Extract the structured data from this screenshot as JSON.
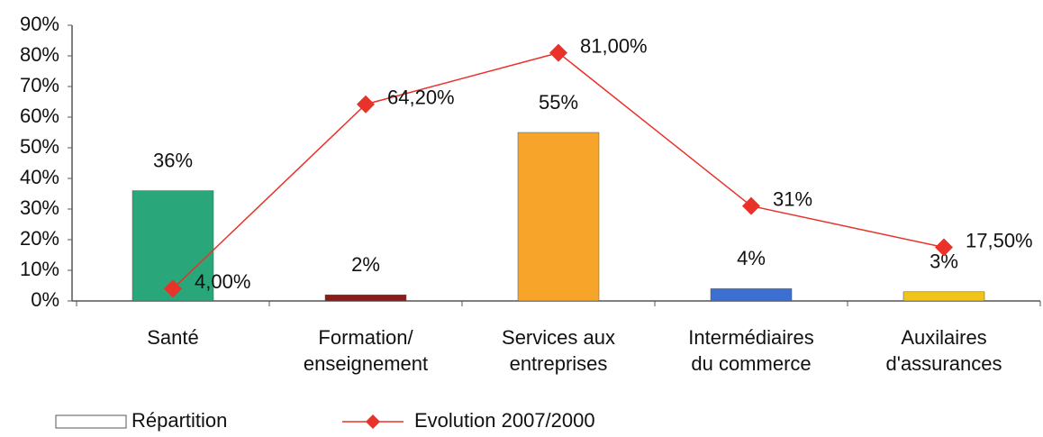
{
  "chart_data": {
    "type": "bar",
    "categories": [
      "Santé",
      "Formation/\nenseignement",
      "Services aux\nentreprises",
      "Intermédiaires\ndu commerce",
      "Auxilaires\nd'assurances"
    ],
    "series": [
      {
        "name": "Répartition",
        "type": "bar",
        "colors": [
          "#2aa77a",
          "#8e1b1b",
          "#f6a52a",
          "#3b6fd1",
          "#f0c419"
        ],
        "values": [
          36,
          2,
          55,
          4,
          3
        ],
        "value_labels": [
          "36%",
          "2%",
          "55%",
          "4%",
          "3%"
        ]
      },
      {
        "name": "Evolution 2007/2000",
        "type": "line",
        "color": "#e8322a",
        "values": [
          4,
          64.2,
          81,
          31,
          17.5
        ],
        "value_labels": [
          "4,00%",
          "64,20%",
          "81,00%",
          "31%",
          "17,50%"
        ]
      }
    ],
    "ylim": [
      0,
      90
    ],
    "yticks": [
      {
        "value": 0,
        "label": "0%"
      },
      {
        "value": 10,
        "label": "10%"
      },
      {
        "value": 20,
        "label": "20%"
      },
      {
        "value": 30,
        "label": "30%"
      },
      {
        "value": 40,
        "label": "40%"
      },
      {
        "value": 50,
        "label": "50%"
      },
      {
        "value": 60,
        "label": "60%"
      },
      {
        "value": 70,
        "label": "70%"
      },
      {
        "value": 80,
        "label": "80%"
      },
      {
        "value": 90,
        "label": "90%"
      }
    ],
    "grid": false
  }
}
